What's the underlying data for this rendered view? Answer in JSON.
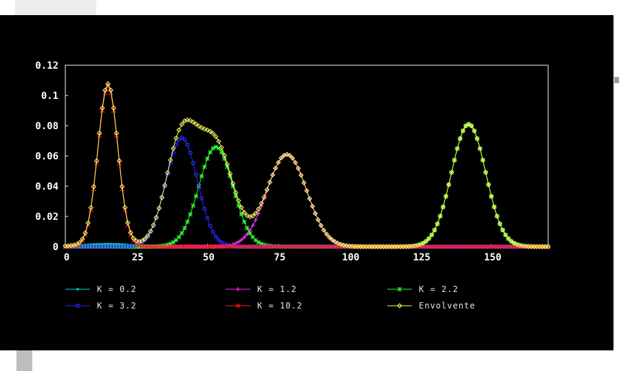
{
  "chart_data": {
    "type": "line",
    "title": "",
    "xlabel": "",
    "ylabel": "",
    "xlim": [
      0,
      170
    ],
    "ylim": [
      0,
      0.12
    ],
    "x_ticks": [
      0,
      25,
      50,
      75,
      100,
      125,
      150
    ],
    "x_tick_labels": [
      "0",
      "25",
      "50",
      "75",
      "100",
      "125",
      "150"
    ],
    "y_ticks": [
      0,
      0.02,
      0.04,
      0.06,
      0.08,
      0.1,
      0.12
    ],
    "y_tick_labels": [
      "0",
      "0.02",
      "0.04",
      "0.06",
      "0.08",
      "0.1",
      "0.12"
    ],
    "grid": false,
    "legend_position": "bottom",
    "x_step": 1,
    "series": [
      {
        "name": "K = 0.2",
        "color": "#00d8e8",
        "marker": "square",
        "components": [
          {
            "peak": 15,
            "height": 0.0018,
            "sigma": 9
          }
        ]
      },
      {
        "name": "K = 1.2",
        "color": "#ff33ff",
        "marker": "plus",
        "components": [
          {
            "peak": 78,
            "height": 0.061,
            "sigma": 7
          }
        ]
      },
      {
        "name": "K = 2.2",
        "color": "#33ff33",
        "marker": "star",
        "components": [
          {
            "peak": 53,
            "height": 0.066,
            "sigma": 6
          },
          {
            "peak": 142,
            "height": 0.081,
            "sigma": 6
          }
        ]
      },
      {
        "name": "K = 3.2",
        "color": "#2a2aff",
        "marker": "circle",
        "components": [
          {
            "peak": 41,
            "height": 0.072,
            "sigma": 5.5
          }
        ]
      },
      {
        "name": "K = 10.2",
        "color": "#ff2020",
        "marker": "cross",
        "components": [
          {
            "peak": 15,
            "height": 0.106,
            "sigma": 3.5
          }
        ]
      },
      {
        "name": "Envolvente",
        "color": "#ffff66",
        "marker": "diamond",
        "is_envelope": true
      }
    ]
  }
}
